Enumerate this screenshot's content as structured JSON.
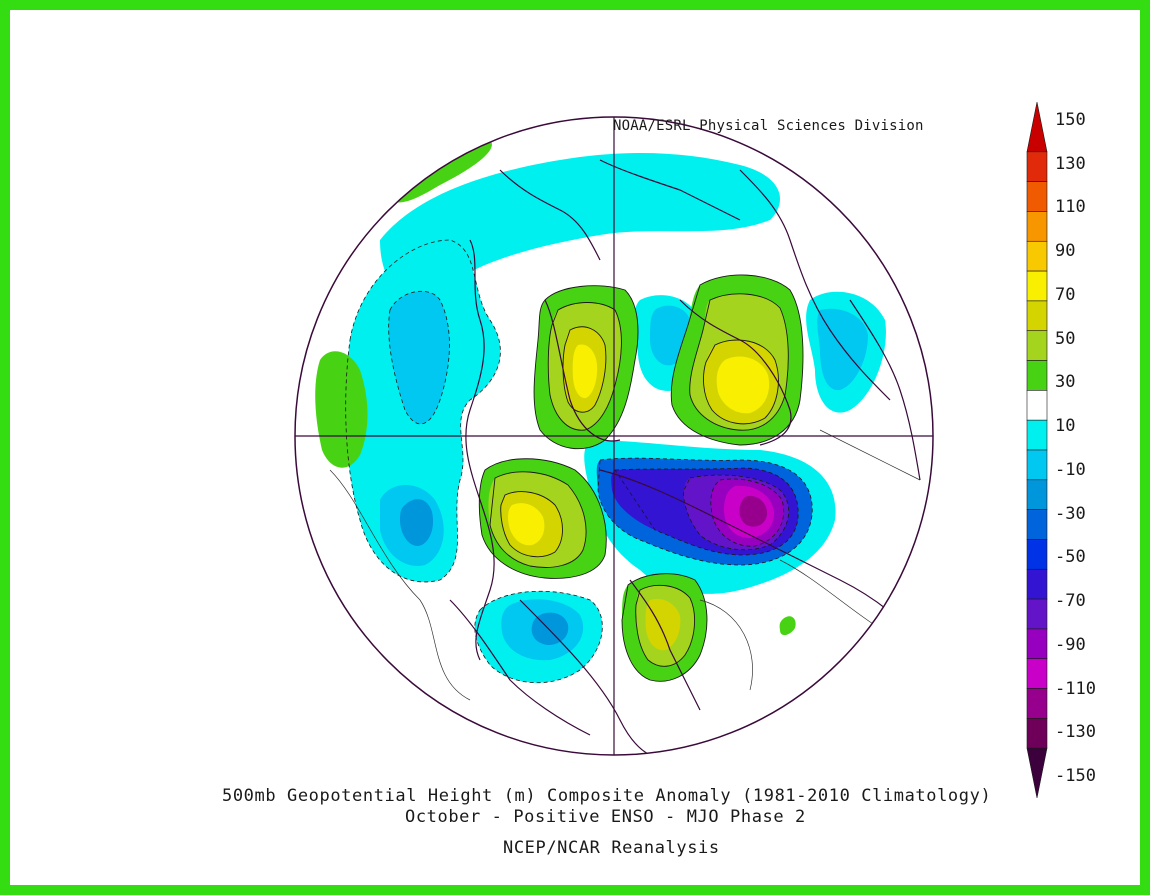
{
  "credit": "NOAA/ESRL Physical Sciences Division",
  "title_line1": "500mb Geopotential Height (m) Composite Anomaly (1981-2010 Climatology)",
  "title_line2": "October - Positive ENSO - MJO Phase 2",
  "source": "NCEP/NCAR Reanalysis",
  "colorbar": {
    "labels": [
      "150",
      "130",
      "110",
      "90",
      "70",
      "50",
      "30",
      "10",
      "-10",
      "-30",
      "-50",
      "-70",
      "-90",
      "-110",
      "-130",
      "-150"
    ],
    "colors": [
      "#c80000",
      "#e02a0a",
      "#f05a00",
      "#f89600",
      "#f8c800",
      "#f8f000",
      "#d4d400",
      "#a4d41e",
      "#48d214",
      "#ffffff",
      "#00f0f0",
      "#00c8f0",
      "#0096dc",
      "#0064dc",
      "#0032e6",
      "#3214d2",
      "#6414c8",
      "#9600be",
      "#c800c8",
      "#96008c",
      "#6e005a",
      "#3c003c"
    ]
  },
  "border_color": "#33dd11",
  "anomaly_features": [
    {
      "sign": "negative",
      "peak": -150,
      "region": "central Eurasia"
    },
    {
      "sign": "positive",
      "peak": 90,
      "region": "Greenland / Arctic"
    },
    {
      "sign": "positive",
      "peak": 80,
      "region": "Scandinavia"
    },
    {
      "sign": "positive",
      "peak": 85,
      "region": "western North America"
    },
    {
      "sign": "positive",
      "peak": 50,
      "region": "East Asia"
    },
    {
      "sign": "negative",
      "peak": -40,
      "region": "North Pacific"
    }
  ]
}
